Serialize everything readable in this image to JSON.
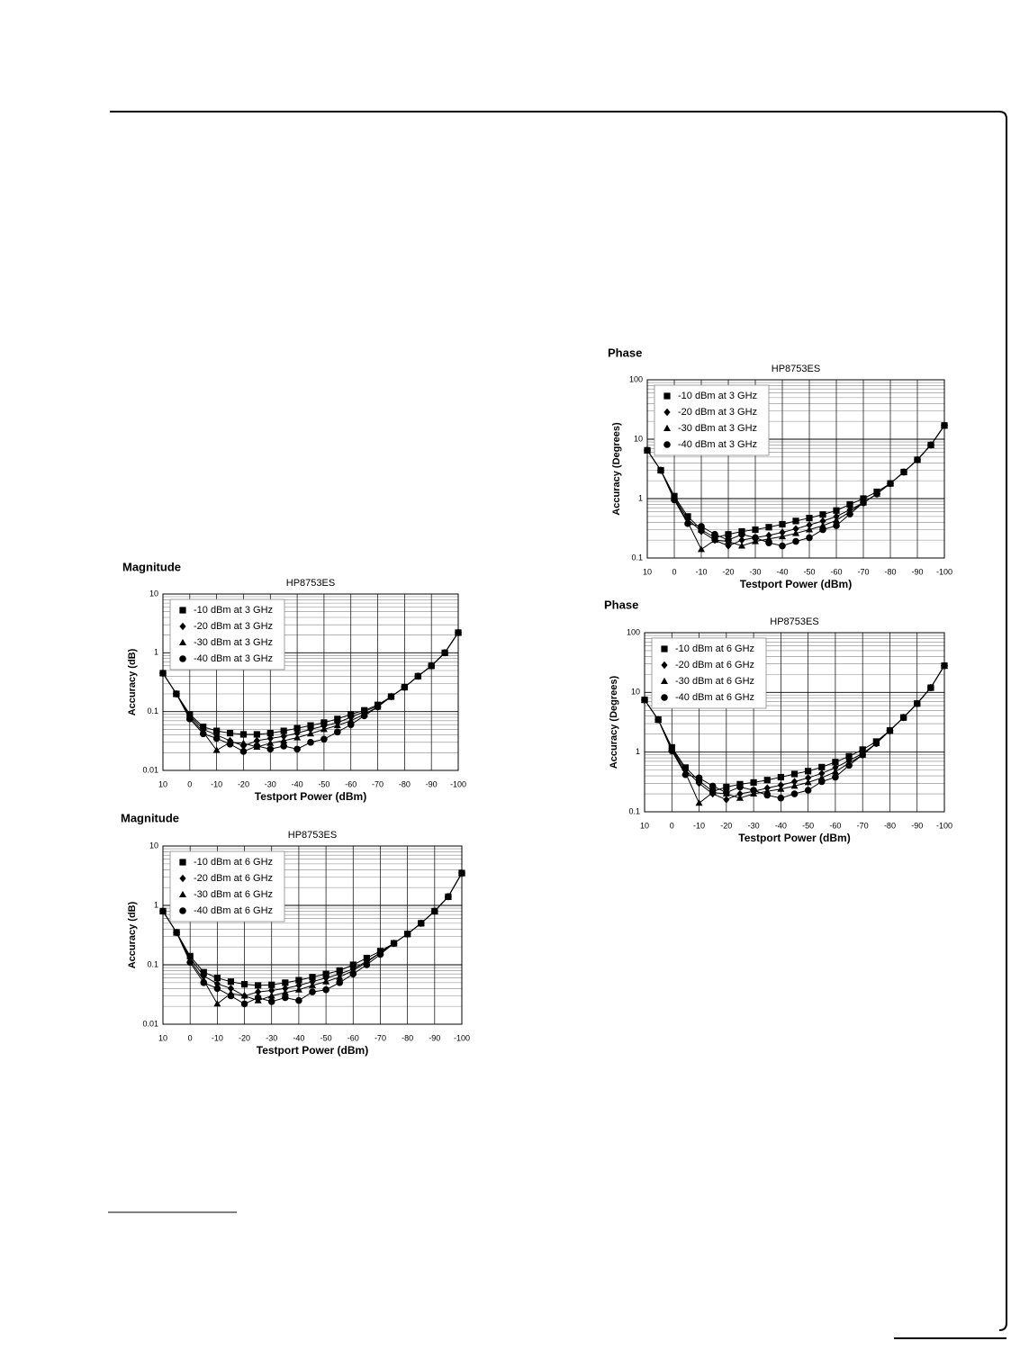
{
  "chart_data": [
    {
      "type": "line",
      "panel_label": "Magnitude",
      "title": "HP8753ES",
      "x_label": "Testport Power (dBm)",
      "y_label": "Accuracy (dB)",
      "log_y": true,
      "grid": true,
      "legend": "upper left",
      "x": [
        10,
        5,
        0,
        -5,
        -10,
        -15,
        -20,
        -25,
        -30,
        -35,
        -40,
        -45,
        -50,
        -55,
        -60,
        -65,
        -70,
        -75,
        -80,
        -85,
        -90,
        -95,
        -100
      ],
      "xlim": [
        10,
        -100
      ],
      "xticks": [
        10,
        0,
        -10,
        -20,
        -30,
        -40,
        -50,
        -60,
        -70,
        -80,
        -90,
        -100
      ],
      "ylim": [
        0.01,
        10
      ],
      "yticks": [
        0.01,
        0.1,
        1,
        10
      ],
      "series": [
        {
          "name": "-10 dBm at 3 GHz",
          "color": "#000000",
          "marker": "square",
          "values": [
            0.45,
            0.2,
            0.09,
            0.055,
            0.047,
            0.043,
            0.041,
            0.041,
            0.043,
            0.047,
            0.052,
            0.058,
            0.065,
            0.075,
            0.09,
            0.105,
            0.13,
            0.18,
            0.26,
            0.4,
            0.6,
            1.0,
            2.2
          ]
        },
        {
          "name": "-20 dBm at 3 GHz",
          "color": "#000000",
          "marker": "diamond",
          "values": [
            0.45,
            0.2,
            0.085,
            0.05,
            0.04,
            0.032,
            0.026,
            0.032,
            0.035,
            0.038,
            0.043,
            0.05,
            0.057,
            0.065,
            0.08,
            0.1,
            0.125,
            0.18,
            0.26,
            0.4,
            0.6,
            1.0,
            2.2
          ]
        },
        {
          "name": "-30 dBm at 3 GHz",
          "color": "#000000",
          "marker": "triangle",
          "values": [
            0.45,
            0.2,
            0.08,
            0.045,
            0.022,
            0.03,
            0.029,
            0.025,
            0.029,
            0.032,
            0.036,
            0.042,
            0.05,
            0.058,
            0.07,
            0.09,
            0.12,
            0.18,
            0.26,
            0.4,
            0.6,
            1.0,
            2.2
          ]
        },
        {
          "name": "-40 dBm at 3 GHz",
          "color": "#000000",
          "marker": "circle",
          "values": [
            0.45,
            0.2,
            0.075,
            0.042,
            0.035,
            0.028,
            0.021,
            0.026,
            0.023,
            0.026,
            0.023,
            0.03,
            0.034,
            0.045,
            0.06,
            0.085,
            0.12,
            0.18,
            0.26,
            0.4,
            0.6,
            1.0,
            2.2
          ]
        }
      ]
    },
    {
      "type": "line",
      "panel_label": "Magnitude",
      "title": "HP8753ES",
      "x_label": "Testport Power (dBm)",
      "y_label": "Accuracy (dB)",
      "log_y": true,
      "grid": true,
      "legend": "upper left",
      "x": [
        10,
        5,
        0,
        -5,
        -10,
        -15,
        -20,
        -25,
        -30,
        -35,
        -40,
        -45,
        -50,
        -55,
        -60,
        -65,
        -70,
        -75,
        -80,
        -85,
        -90,
        -95,
        -100
      ],
      "xlim": [
        10,
        -100
      ],
      "xticks": [
        10,
        0,
        -10,
        -20,
        -30,
        -40,
        -50,
        -60,
        -70,
        -80,
        -90,
        -100
      ],
      "ylim": [
        0.01,
        10
      ],
      "yticks": [
        0.01,
        0.1,
        1,
        10
      ],
      "series": [
        {
          "name": "-10 dBm at 6 GHz",
          "color": "#000000",
          "marker": "square",
          "values": [
            0.8,
            0.35,
            0.14,
            0.075,
            0.06,
            0.052,
            0.047,
            0.045,
            0.046,
            0.05,
            0.055,
            0.062,
            0.07,
            0.08,
            0.1,
            0.13,
            0.17,
            0.23,
            0.33,
            0.5,
            0.8,
            1.4,
            3.5
          ]
        },
        {
          "name": "-20 dBm at 6 GHz",
          "color": "#000000",
          "marker": "diamond",
          "values": [
            0.8,
            0.35,
            0.13,
            0.065,
            0.048,
            0.04,
            0.03,
            0.035,
            0.037,
            0.04,
            0.045,
            0.052,
            0.06,
            0.07,
            0.085,
            0.115,
            0.16,
            0.23,
            0.33,
            0.5,
            0.8,
            1.4,
            3.5
          ]
        },
        {
          "name": "-30 dBm at 6 GHz",
          "color": "#000000",
          "marker": "triangle",
          "values": [
            0.8,
            0.35,
            0.12,
            0.055,
            0.022,
            0.033,
            0.03,
            0.025,
            0.03,
            0.034,
            0.038,
            0.045,
            0.052,
            0.062,
            0.08,
            0.11,
            0.16,
            0.23,
            0.33,
            0.5,
            0.8,
            1.4,
            3.5
          ]
        },
        {
          "name": "-40 dBm at 6 GHz",
          "color": "#000000",
          "marker": "circle",
          "values": [
            0.8,
            0.35,
            0.11,
            0.05,
            0.04,
            0.03,
            0.022,
            0.028,
            0.024,
            0.028,
            0.025,
            0.035,
            0.038,
            0.05,
            0.07,
            0.1,
            0.15,
            0.23,
            0.33,
            0.5,
            0.8,
            1.4,
            3.5
          ]
        }
      ]
    },
    {
      "type": "line",
      "panel_label": "Phase",
      "title": "HP8753ES",
      "x_label": "Testport Power (dBm)",
      "y_label": "Accuracy (Degrees)",
      "log_y": true,
      "grid": true,
      "legend": "upper left",
      "x": [
        10,
        5,
        0,
        -5,
        -10,
        -15,
        -20,
        -25,
        -30,
        -35,
        -40,
        -45,
        -50,
        -55,
        -60,
        -65,
        -70,
        -75,
        -80,
        -85,
        -90,
        -95,
        -100
      ],
      "xlim": [
        10,
        -100
      ],
      "xticks": [
        10,
        0,
        -10,
        -20,
        -30,
        -40,
        -50,
        -60,
        -70,
        -80,
        -90,
        -100
      ],
      "ylim": [
        0.1,
        100
      ],
      "yticks": [
        0.1,
        1,
        10,
        100
      ],
      "series": [
        {
          "name": "-10 dBm at 3 GHz",
          "color": "#000000",
          "marker": "square",
          "values": [
            6.5,
            3,
            1.1,
            0.5,
            0.3,
            0.22,
            0.25,
            0.28,
            0.3,
            0.33,
            0.37,
            0.42,
            0.47,
            0.54,
            0.63,
            0.8,
            1.0,
            1.3,
            1.8,
            2.8,
            4.5,
            8,
            17
          ]
        },
        {
          "name": "-20 dBm at 3 GHz",
          "color": "#000000",
          "marker": "diamond",
          "values": [
            6.5,
            3,
            1.05,
            0.45,
            0.28,
            0.2,
            0.16,
            0.2,
            0.22,
            0.24,
            0.27,
            0.31,
            0.36,
            0.42,
            0.5,
            0.65,
            0.85,
            1.2,
            1.8,
            2.8,
            4.5,
            8,
            17
          ]
        },
        {
          "name": "-30 dBm at 3 GHz",
          "color": "#000000",
          "marker": "triangle",
          "values": [
            6.5,
            3,
            1.0,
            0.4,
            0.14,
            0.2,
            0.19,
            0.16,
            0.19,
            0.21,
            0.23,
            0.26,
            0.3,
            0.35,
            0.43,
            0.6,
            0.85,
            1.2,
            1.8,
            2.8,
            4.5,
            8,
            17
          ]
        },
        {
          "name": "-40 dBm at 3 GHz",
          "color": "#000000",
          "marker": "circle",
          "values": [
            6.5,
            3,
            0.95,
            0.38,
            0.34,
            0.25,
            0.2,
            0.25,
            0.22,
            0.18,
            0.16,
            0.19,
            0.22,
            0.3,
            0.35,
            0.55,
            0.85,
            1.2,
            1.8,
            2.8,
            4.5,
            8,
            17
          ]
        }
      ]
    },
    {
      "type": "line",
      "panel_label": "Phase",
      "title": "HP8753ES",
      "x_label": "Testport Power (dBm)",
      "y_label": "Accuracy (Degrees)",
      "log_y": true,
      "grid": true,
      "legend": "upper left",
      "x": [
        10,
        5,
        0,
        -5,
        -10,
        -15,
        -20,
        -25,
        -30,
        -35,
        -40,
        -45,
        -50,
        -55,
        -60,
        -65,
        -70,
        -75,
        -80,
        -85,
        -90,
        -95,
        -100
      ],
      "xlim": [
        10,
        -100
      ],
      "xticks": [
        10,
        0,
        -10,
        -20,
        -30,
        -40,
        -50,
        -60,
        -70,
        -80,
        -90,
        -100
      ],
      "ylim": [
        0.1,
        100
      ],
      "yticks": [
        0.1,
        1,
        10,
        100
      ],
      "series": [
        {
          "name": "-10 dBm at 6 GHz",
          "color": "#000000",
          "marker": "square",
          "values": [
            7.5,
            3.5,
            1.2,
            0.55,
            0.33,
            0.22,
            0.26,
            0.29,
            0.31,
            0.34,
            0.38,
            0.43,
            0.48,
            0.56,
            0.68,
            0.85,
            1.1,
            1.5,
            2.3,
            3.8,
            6.5,
            12,
            28
          ]
        },
        {
          "name": "-20 dBm at 6 GHz",
          "color": "#000000",
          "marker": "diamond",
          "values": [
            7.5,
            3.5,
            1.15,
            0.5,
            0.3,
            0.2,
            0.16,
            0.2,
            0.22,
            0.25,
            0.28,
            0.32,
            0.37,
            0.44,
            0.55,
            0.72,
            0.95,
            1.4,
            2.3,
            3.8,
            6.5,
            12,
            28
          ]
        },
        {
          "name": "-30 dBm at 6 GHz",
          "color": "#000000",
          "marker": "triangle",
          "values": [
            7.5,
            3.5,
            1.1,
            0.45,
            0.14,
            0.21,
            0.2,
            0.17,
            0.2,
            0.22,
            0.24,
            0.27,
            0.31,
            0.37,
            0.47,
            0.65,
            0.9,
            1.4,
            2.3,
            3.8,
            6.5,
            12,
            28
          ]
        },
        {
          "name": "-40 dBm at 6 GHz",
          "color": "#000000",
          "marker": "circle",
          "values": [
            7.5,
            3.5,
            1.05,
            0.42,
            0.37,
            0.27,
            0.21,
            0.26,
            0.23,
            0.19,
            0.17,
            0.2,
            0.23,
            0.32,
            0.38,
            0.6,
            0.9,
            1.4,
            2.3,
            3.8,
            6.5,
            12,
            28
          ]
        }
      ]
    }
  ]
}
